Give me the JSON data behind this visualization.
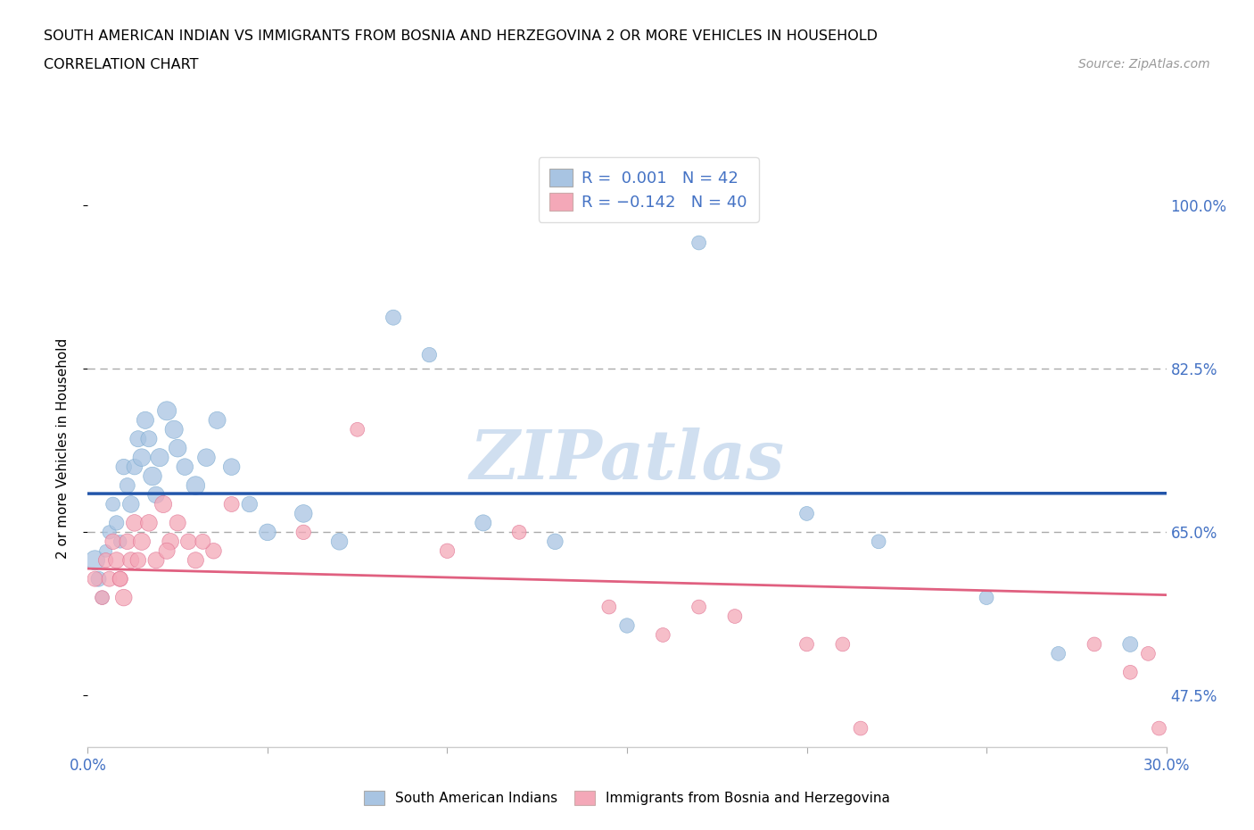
{
  "title_line1": "SOUTH AMERICAN INDIAN VS IMMIGRANTS FROM BOSNIA AND HERZEGOVINA 2 OR MORE VEHICLES IN HOUSEHOLD",
  "title_line2": "CORRELATION CHART",
  "source_text": "Source: ZipAtlas.com",
  "ylabel": "2 or more Vehicles in Household",
  "xmin": 0.0,
  "xmax": 0.3,
  "ymin": 0.42,
  "ymax": 1.06,
  "hline1_y": 0.65,
  "hline2_y": 0.825,
  "yaxis_ticks": [
    0.475,
    0.65,
    0.825,
    1.0
  ],
  "yaxis_labels": [
    "47.5%",
    "65.0%",
    "82.5%",
    "100.0%"
  ],
  "xaxis_ticks": [
    0.0,
    0.05,
    0.1,
    0.15,
    0.2,
    0.25,
    0.3
  ],
  "xaxis_labels": [
    "0.0%",
    "",
    "",
    "",
    "",
    "",
    "30.0%"
  ],
  "series1_color": "#a8c4e2",
  "series2_color": "#f4a8b8",
  "series1_edgecolor": "#7aaad0",
  "series2_edgecolor": "#e07090",
  "series1_name": "South American Indians",
  "series2_name": "Immigrants from Bosnia and Herzegovina",
  "R1": 0.001,
  "N1": 42,
  "R2": -0.142,
  "N2": 40,
  "trendline1_color": "#2255aa",
  "trendline2_color": "#e06080",
  "watermark": "ZIPatlas",
  "watermark_color": "#d0dff0",
  "series1_x": [
    0.002,
    0.003,
    0.004,
    0.005,
    0.006,
    0.007,
    0.008,
    0.009,
    0.01,
    0.011,
    0.012,
    0.013,
    0.014,
    0.015,
    0.016,
    0.017,
    0.018,
    0.019,
    0.02,
    0.022,
    0.024,
    0.025,
    0.027,
    0.03,
    0.033,
    0.036,
    0.04,
    0.045,
    0.05,
    0.06,
    0.07,
    0.085,
    0.095,
    0.11,
    0.13,
    0.15,
    0.17,
    0.2,
    0.22,
    0.25,
    0.27,
    0.29
  ],
  "series1_y": [
    0.62,
    0.6,
    0.58,
    0.63,
    0.65,
    0.68,
    0.66,
    0.64,
    0.72,
    0.7,
    0.68,
    0.72,
    0.75,
    0.73,
    0.77,
    0.75,
    0.71,
    0.69,
    0.73,
    0.78,
    0.76,
    0.74,
    0.72,
    0.7,
    0.73,
    0.77,
    0.72,
    0.68,
    0.65,
    0.67,
    0.64,
    0.88,
    0.84,
    0.66,
    0.64,
    0.55,
    0.96,
    0.67,
    0.64,
    0.58,
    0.52,
    0.53
  ],
  "series1_sizes": [
    250,
    150,
    120,
    100,
    120,
    130,
    140,
    110,
    160,
    150,
    180,
    160,
    170,
    200,
    190,
    170,
    220,
    180,
    210,
    230,
    210,
    200,
    180,
    220,
    200,
    190,
    180,
    160,
    180,
    200,
    180,
    150,
    140,
    170,
    160,
    140,
    130,
    130,
    130,
    130,
    130,
    150
  ],
  "series2_x": [
    0.002,
    0.004,
    0.005,
    0.006,
    0.007,
    0.008,
    0.009,
    0.01,
    0.011,
    0.012,
    0.013,
    0.015,
    0.017,
    0.019,
    0.021,
    0.023,
    0.025,
    0.028,
    0.03,
    0.035,
    0.04,
    0.06,
    0.075,
    0.1,
    0.12,
    0.145,
    0.16,
    0.17,
    0.18,
    0.2,
    0.21,
    0.215,
    0.28,
    0.29,
    0.295,
    0.298,
    0.009,
    0.014,
    0.022,
    0.032
  ],
  "series2_y": [
    0.6,
    0.58,
    0.62,
    0.6,
    0.64,
    0.62,
    0.6,
    0.58,
    0.64,
    0.62,
    0.66,
    0.64,
    0.66,
    0.62,
    0.68,
    0.64,
    0.66,
    0.64,
    0.62,
    0.63,
    0.68,
    0.65,
    0.76,
    0.63,
    0.65,
    0.57,
    0.54,
    0.57,
    0.56,
    0.53,
    0.53,
    0.44,
    0.53,
    0.5,
    0.52,
    0.44,
    0.6,
    0.62,
    0.63,
    0.64
  ],
  "series2_sizes": [
    150,
    130,
    140,
    150,
    160,
    170,
    150,
    180,
    160,
    170,
    180,
    190,
    180,
    170,
    190,
    180,
    170,
    160,
    170,
    160,
    150,
    140,
    130,
    140,
    130,
    130,
    130,
    130,
    130,
    130,
    130,
    130,
    130,
    130,
    130,
    130,
    150,
    160,
    170,
    150
  ]
}
